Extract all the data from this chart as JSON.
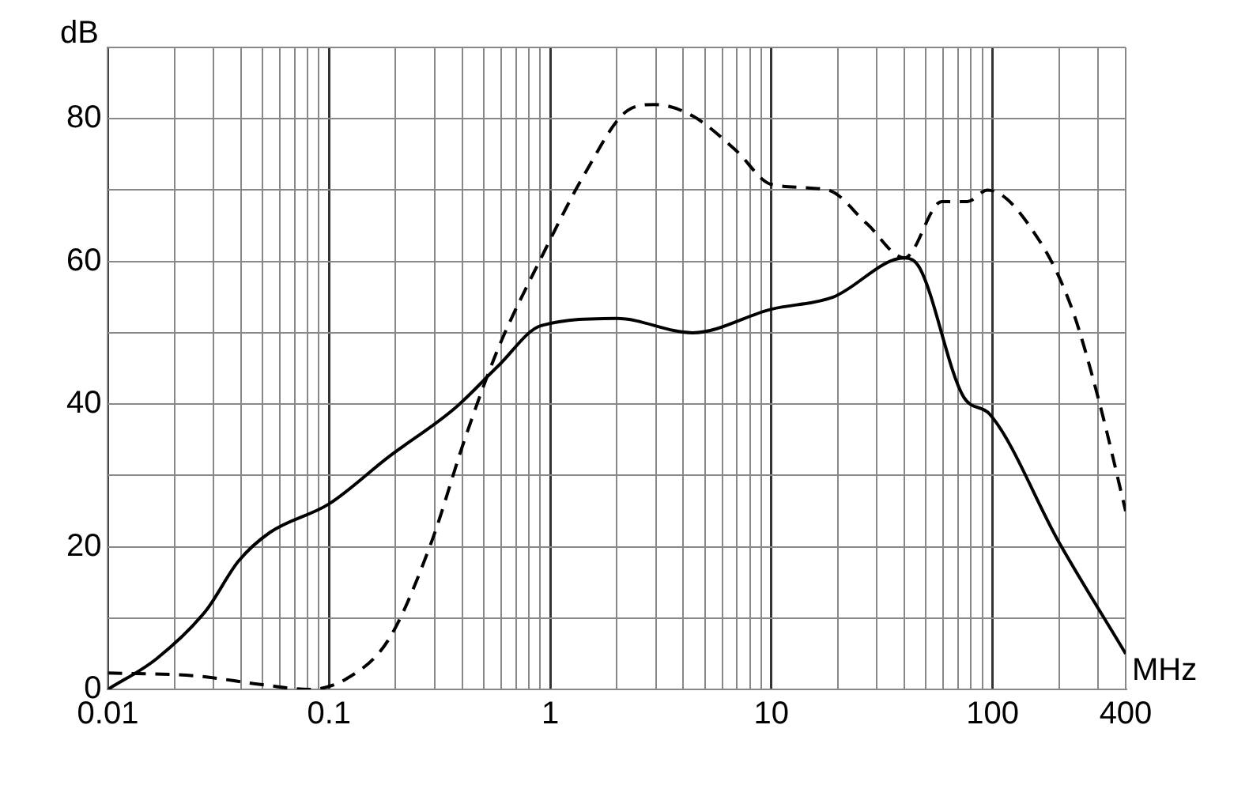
{
  "chart_data": {
    "type": "line",
    "xlabel": "MHz",
    "ylabel": "dB",
    "log": "x",
    "grid": true,
    "legend": false,
    "marker": "none",
    "xlim": [
      0.01,
      400
    ],
    "xticks": [
      0.01,
      {
        "value": 0.02,
        "label": null
      },
      {
        "value": 0.03,
        "label": null
      },
      {
        "value": 0.04,
        "label": null
      },
      {
        "value": 0.05,
        "label": null
      },
      {
        "value": 0.06,
        "label": null
      },
      {
        "value": 0.07,
        "label": null
      },
      {
        "value": 0.08,
        "label": null
      },
      {
        "value": 0.09,
        "label": null
      },
      0.1,
      {
        "value": 0.2,
        "label": null
      },
      {
        "value": 0.3,
        "label": null
      },
      {
        "value": 0.4,
        "label": null
      },
      {
        "value": 0.5,
        "label": null
      },
      {
        "value": 0.6,
        "label": null
      },
      {
        "value": 0.7,
        "label": null
      },
      {
        "value": 0.8,
        "label": null
      },
      {
        "value": 0.9,
        "label": null
      },
      1,
      {
        "value": 2,
        "label": null
      },
      {
        "value": 3,
        "label": null
      },
      {
        "value": 4,
        "label": null
      },
      {
        "value": 5,
        "label": null
      },
      {
        "value": 6,
        "label": null
      },
      {
        "value": 7,
        "label": null
      },
      {
        "value": 8,
        "label": null
      },
      {
        "value": 9,
        "label": null
      },
      10,
      {
        "value": 20,
        "label": null
      },
      {
        "value": 30,
        "label": null
      },
      {
        "value": 40,
        "label": null
      },
      {
        "value": 50,
        "label": null
      },
      {
        "value": 60,
        "label": null
      },
      {
        "value": 70,
        "label": null
      },
      {
        "value": 80,
        "label": null
      },
      {
        "value": 90,
        "label": null
      },
      100,
      {
        "value": 200,
        "label": null
      },
      {
        "value": 300,
        "label": null
      },
      400
    ],
    "ylim": [
      0,
      90
    ],
    "yticks": [
      0,
      {
        "value": 10,
        "label": null
      },
      20,
      {
        "value": 30,
        "label": null
      },
      40,
      {
        "value": 50,
        "label": null
      },
      60,
      {
        "value": 70,
        "label": null
      },
      80,
      {
        "value": 90,
        "label": null
      }
    ],
    "series": [
      {
        "color": "#000000",
        "line_style": "solid",
        "x": [
          0.01,
          0.0166,
          0.0277,
          0.039,
          0.054,
          0.1,
          0.186,
          0.37,
          0.58,
          0.91,
          2.0,
          4.4,
          10,
          19,
          40,
          47,
          74,
          97,
          200,
          400
        ],
        "values": [
          0,
          4.3,
          11,
          18,
          22,
          26,
          32.6,
          39.4,
          45.3,
          51,
          52,
          50,
          53.3,
          55,
          60.5,
          59,
          41,
          38.6,
          20.6,
          5
        ]
      },
      {
        "color": "#000000",
        "line_style": "dashed",
        "x": [
          0.01,
          0.0247,
          0.049,
          0.081,
          0.12,
          0.186,
          0.29,
          0.41,
          0.58,
          0.91,
          1.44,
          2.25,
          2.97,
          4.4,
          6.9,
          10,
          18,
          27,
          40,
          59,
          77,
          95,
          163,
          229,
          302,
          400
        ],
        "values": [
          2.3,
          1.9,
          0.7,
          0,
          1.5,
          7,
          20.6,
          35,
          47.7,
          60.5,
          72.4,
          81.2,
          82,
          80.4,
          75.6,
          70.8,
          70,
          65.3,
          60.5,
          68.4,
          68.4,
          70,
          62.9,
          53.3,
          40.6,
          25
        ]
      }
    ]
  }
}
